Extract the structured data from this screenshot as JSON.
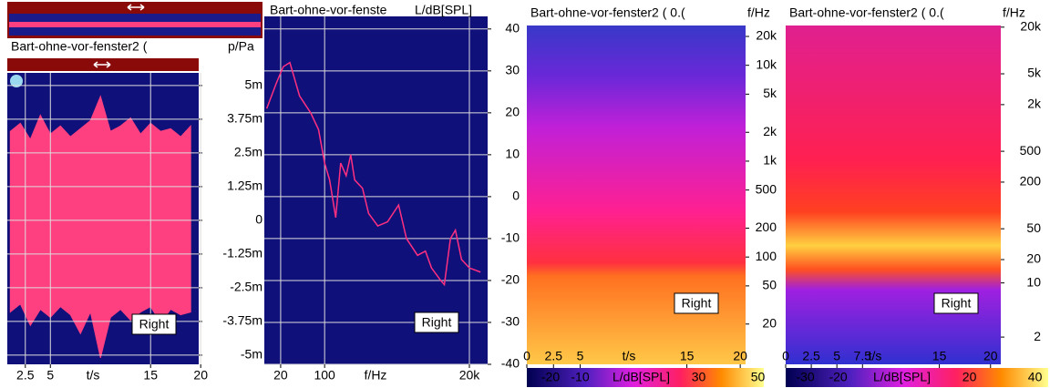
{
  "panels": [
    {
      "title": "Bart-ohne-vor-fenster2 (",
      "y_label": "p/Pa",
      "x_label": "t/s",
      "channel": "Right",
      "grid": true,
      "log_x": false,
      "log_y": false,
      "xlim": [
        0.7,
        19.8
      ],
      "xticks": [
        2.5,
        5,
        15,
        20
      ],
      "ylim": [
        -0.00534,
        0.00547
      ],
      "yticks": [
        {
          "value": 0.005,
          "label": "5m"
        },
        {
          "value": 0.00375,
          "label": "3.75m"
        },
        {
          "value": 0.0025,
          "label": "2.5m"
        },
        {
          "value": 0.00125,
          "label": "1.25m"
        },
        0,
        {
          "value": -0.00125,
          "label": "-1.25m"
        },
        {
          "value": -0.0025,
          "label": "-2.5m"
        },
        {
          "value": -0.00375,
          "label": "-3.75m"
        },
        {
          "value": -0.005,
          "label": "-5m"
        }
      ],
      "t": [
        1,
        2,
        3,
        4,
        5,
        6,
        7,
        8,
        9,
        10,
        11,
        12,
        13,
        14,
        15,
        16,
        17,
        18,
        19
      ],
      "max": [
        0.0033,
        0.0036,
        0.003,
        0.0039,
        0.0032,
        0.0035,
        0.0031,
        0.0034,
        0.0037,
        0.0046,
        0.0033,
        0.0035,
        0.0038,
        0.0032,
        0.0036,
        0.0033,
        0.0034,
        0.0031,
        0.0035
      ],
      "min": [
        -0.0034,
        -0.0031,
        -0.0039,
        -0.0033,
        -0.0036,
        -0.0032,
        -0.0035,
        -0.0042,
        -0.0034,
        -0.0051,
        -0.0036,
        -0.0033,
        -0.0037,
        -0.0034,
        -0.0032,
        -0.0038,
        -0.0033,
        -0.0035,
        -0.0034
      ]
    },
    {
      "title": "Bart-ohne-vor-fenste",
      "y_label": "L/dB[SPL]",
      "x_label": "f/Hz",
      "channel": "Right",
      "grid": true,
      "log_x": true,
      "log_y": false,
      "xlim": [
        11,
        39000
      ],
      "xticks": [
        20,
        100,
        {
          "value": 20000,
          "label": "20k"
        }
      ],
      "ylim": [
        -40,
        43
      ],
      "yticks": [
        40,
        30,
        20,
        10,
        0,
        -10,
        -20,
        -30,
        -40
      ],
      "f": [
        12,
        17,
        22,
        28,
        40,
        60,
        80,
        100,
        120,
        150,
        180,
        220,
        260,
        300,
        400,
        500,
        700,
        1000,
        1500,
        2000,
        3000,
        4000,
        5000,
        7000,
        8000,
        10000,
        12000,
        15000,
        20000,
        30000
      ],
      "L": [
        21,
        27,
        31,
        32,
        24,
        20,
        16,
        8,
        4,
        -5,
        8,
        5,
        10,
        4,
        2,
        -4,
        -7,
        -6,
        -2,
        -10,
        -14,
        -13,
        -17,
        -20,
        -21,
        -10,
        -8,
        -15,
        -17,
        -18
      ]
    },
    {
      "title": "Bart-ohne-vor-fenster2 ( 0.(",
      "y_label": "f/Hz",
      "x_label": "t/s",
      "channel": "Right",
      "grid": false,
      "log_x": false,
      "log_y": true,
      "xlim": [
        0,
        20.5
      ],
      "xticks": [
        0,
        2.5,
        5,
        15,
        20
      ],
      "ylim": [
        7.6,
        26000
      ],
      "yticks": [
        {
          "value": 20000,
          "label": "20k"
        },
        {
          "value": 10000,
          "label": "10k"
        },
        {
          "value": 5000,
          "label": "5k"
        },
        {
          "value": 2000,
          "label": "2k"
        },
        {
          "value": 1000,
          "label": "1k"
        },
        500,
        200,
        100,
        50,
        20
      ],
      "colorbar": {
        "label": "L/dB[SPL]",
        "lim": [
          -28,
          52
        ],
        "ticks": [
          -20,
          -10,
          30,
          50
        ]
      }
    },
    {
      "title": "Bart-ohne-vor-fenster2 ( 0.(",
      "y_label": "f/Hz",
      "x_label": "t/s",
      "channel": "Right",
      "grid": false,
      "log_x": false,
      "log_y": true,
      "xlim": [
        0,
        21
      ],
      "xticks": [
        0,
        2.5,
        5,
        7.5,
        15,
        20
      ],
      "ylim": [
        0.89,
        21000
      ],
      "yticks": [
        {
          "value": 20000,
          "label": "20k"
        },
        {
          "value": 5000,
          "label": "5k"
        },
        {
          "value": 2000,
          "label": "2k"
        },
        500,
        200,
        50,
        20,
        10,
        2
      ],
      "colorbar": {
        "label": "L/dB[SPL]",
        "lim": [
          -36,
          44
        ],
        "ticks": [
          -30,
          -20,
          20,
          40
        ]
      }
    }
  ]
}
